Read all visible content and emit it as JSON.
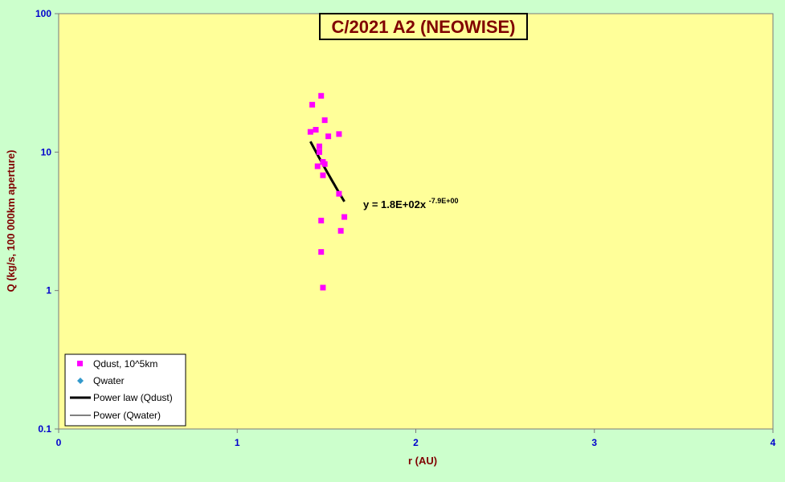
{
  "chart_data": {
    "type": "scatter",
    "title": "C/2021 A2 (NEOWISE)",
    "xlabel": "r (AU)",
    "ylabel": "Q (kg/s, 100 000km aperture)",
    "xlim": [
      0,
      4
    ],
    "ylim": [
      0.1,
      100
    ],
    "yscale": "log",
    "xticks": [
      "0",
      "1",
      "2",
      "3",
      "4"
    ],
    "yticks": [
      "0.1",
      "1",
      "10",
      "100"
    ],
    "grid": false,
    "legend_position": "bottom-left",
    "colors": {
      "plot_background": "#ffff99",
      "outer_background": "#ccffcc",
      "axis_text": "#0000cc",
      "label_text": "#800000",
      "qdust": "#ff00ff",
      "qwater": "#3399cc",
      "trend": "#000000"
    },
    "series": [
      {
        "name": "Qdust, 10^5km",
        "marker": "square",
        "points": [
          {
            "x": 1.42,
            "y": 22
          },
          {
            "x": 1.47,
            "y": 25.5
          },
          {
            "x": 1.41,
            "y": 14
          },
          {
            "x": 1.44,
            "y": 14.5
          },
          {
            "x": 1.49,
            "y": 17
          },
          {
            "x": 1.51,
            "y": 13
          },
          {
            "x": 1.57,
            "y": 13.5
          },
          {
            "x": 1.46,
            "y": 11
          },
          {
            "x": 1.46,
            "y": 10
          },
          {
            "x": 1.48,
            "y": 8.5
          },
          {
            "x": 1.49,
            "y": 8.2
          },
          {
            "x": 1.45,
            "y": 7.9
          },
          {
            "x": 1.48,
            "y": 6.8
          },
          {
            "x": 1.57,
            "y": 5
          },
          {
            "x": 1.47,
            "y": 3.2
          },
          {
            "x": 1.6,
            "y": 3.4
          },
          {
            "x": 1.58,
            "y": 2.7
          },
          {
            "x": 1.47,
            "y": 1.9
          },
          {
            "x": 1.48,
            "y": 1.05
          }
        ]
      },
      {
        "name": "Qwater",
        "marker": "diamond",
        "points": []
      }
    ],
    "trendlines": [
      {
        "name": "Power law (Qdust)",
        "type": "power",
        "coefficient": 180,
        "exponent": -7.9,
        "x_range": [
          1.41,
          1.6
        ],
        "line_width": "thick"
      },
      {
        "name": "Power (Qwater)",
        "type": "power",
        "line_width": "thin"
      }
    ],
    "annotations": {
      "equation_base": "y = 1.8E+02x",
      "equation_exponent": "-7.9E+00"
    }
  }
}
